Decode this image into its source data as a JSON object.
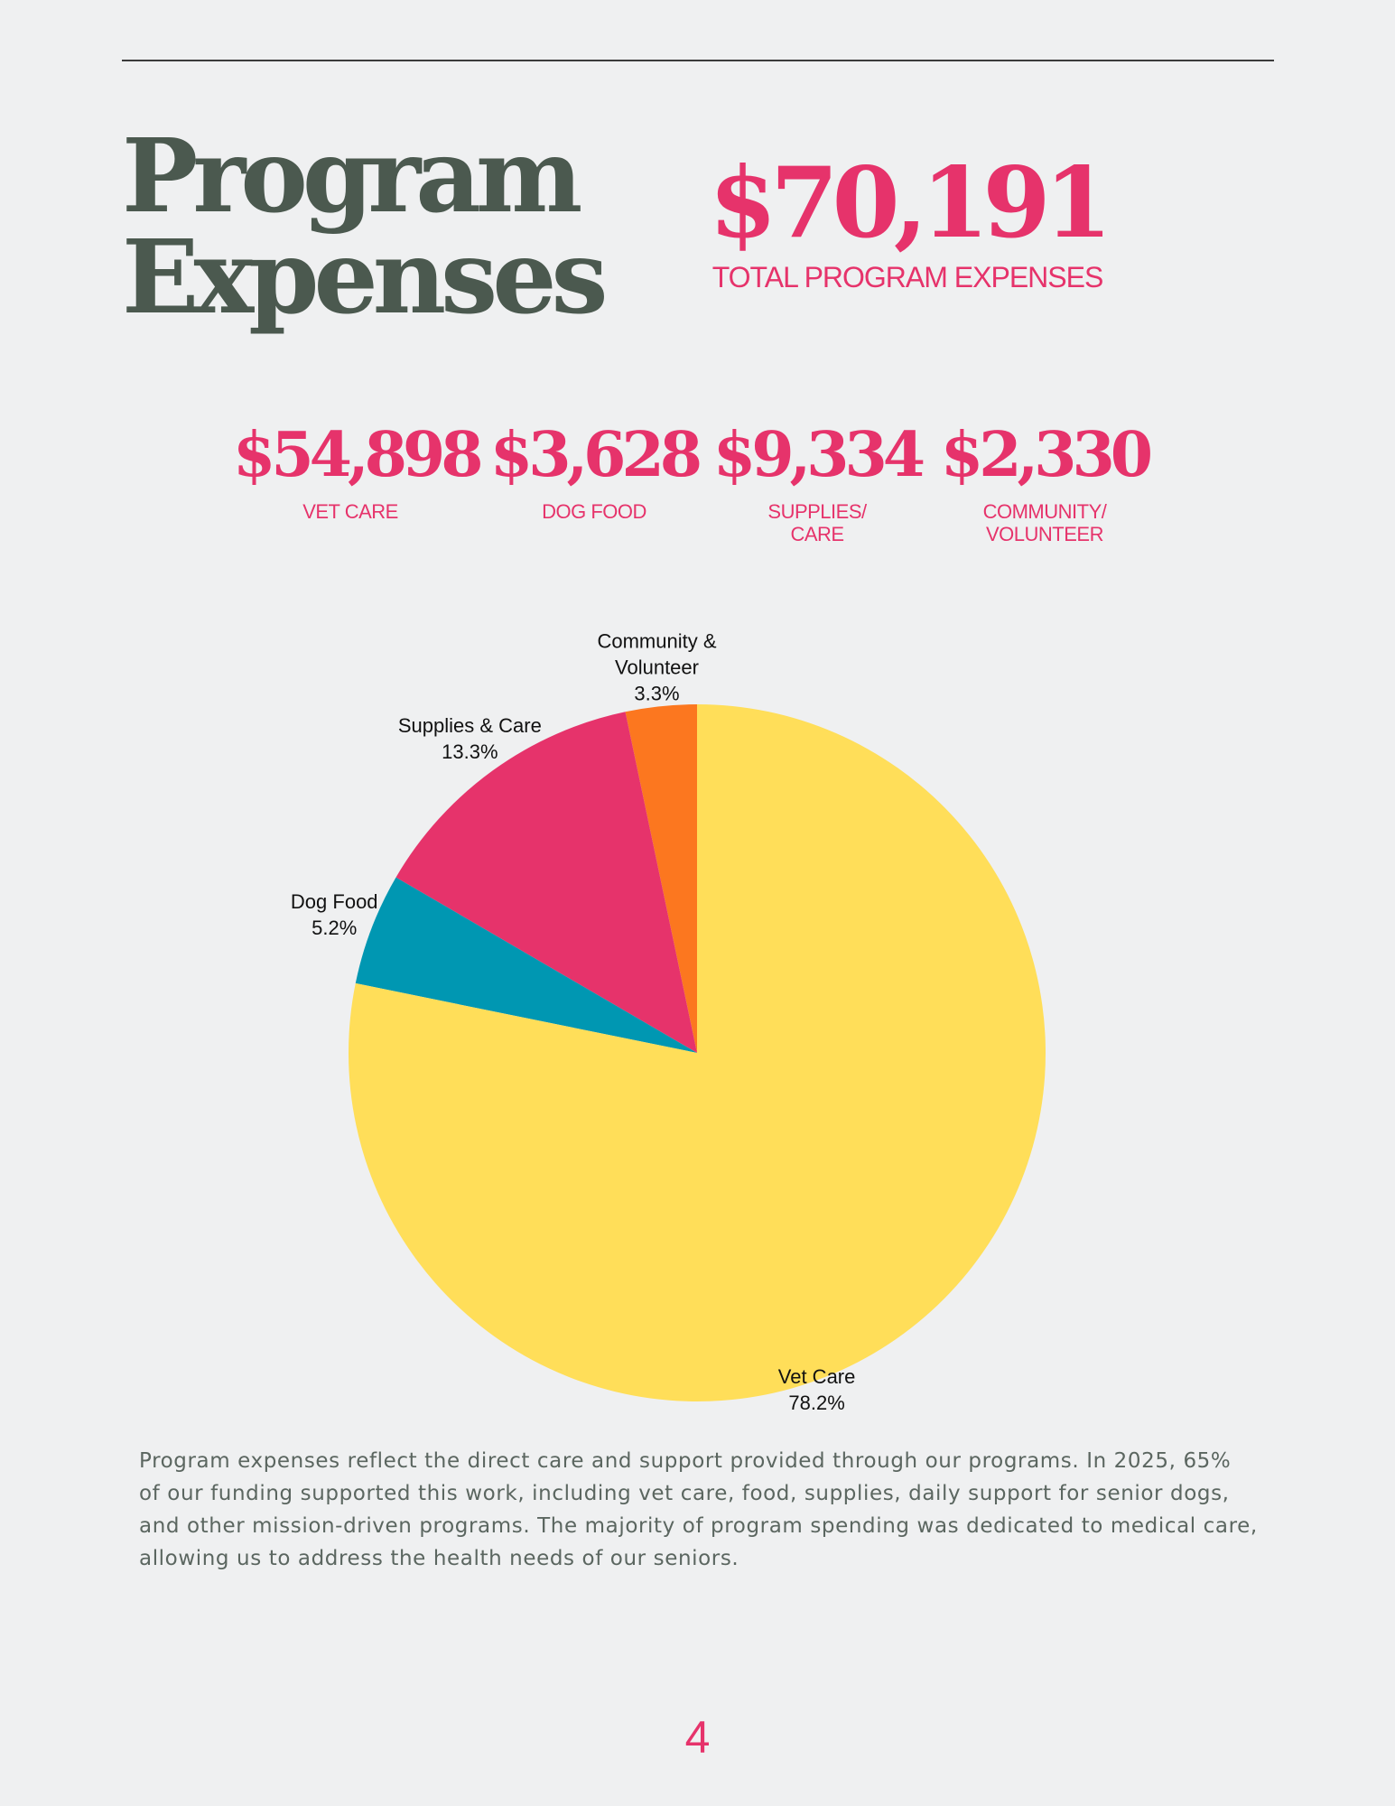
{
  "header": {
    "title_line1": "Program",
    "title_line2": "Expenses",
    "total_value": "$70,191",
    "total_label": "TOTAL PROGRAM EXPENSES"
  },
  "stats": [
    {
      "value": "$54,898",
      "label": "VET CARE"
    },
    {
      "value": "$3,628",
      "label": "DOG FOOD"
    },
    {
      "value": "$9,334",
      "label": "SUPPLIES/\nCARE"
    },
    {
      "value": "$2,330",
      "label": "COMMUNITY/\nVOLUNTEER"
    }
  ],
  "chart_data": {
    "type": "pie",
    "start": "top",
    "direction": "counterclockwise",
    "slices": [
      {
        "label": "Community & Volunteer",
        "label_lines": [
          "Community &",
          "Volunteer"
        ],
        "value": 3.3,
        "value_label": "3.3%",
        "color": "#fc771f"
      },
      {
        "label": "Supplies & Care",
        "label_lines": [
          "Supplies & Care"
        ],
        "value": 13.3,
        "value_label": "13.3%",
        "color": "#e6336b"
      },
      {
        "label": "Dog Food",
        "label_lines": [
          "Dog Food"
        ],
        "value": 5.2,
        "value_label": "5.2%",
        "color": "#0097b2"
      },
      {
        "label": "Vet Care",
        "label_lines": [
          "Vet Care"
        ],
        "value": 78.2,
        "value_label": "78.2%",
        "color": "#ffde59"
      }
    ]
  },
  "body": {
    "paragraph": "Program expenses reflect the direct care and support provided through our programs. In 2025, 65% of our funding supported this work, including vet care, food, supplies, daily support for senior dogs, and other mission-driven programs.  The majority of program spending was dedicated to medical care, allowing us to address the health needs of our seniors."
  },
  "footer": {
    "page_number": "4"
  }
}
